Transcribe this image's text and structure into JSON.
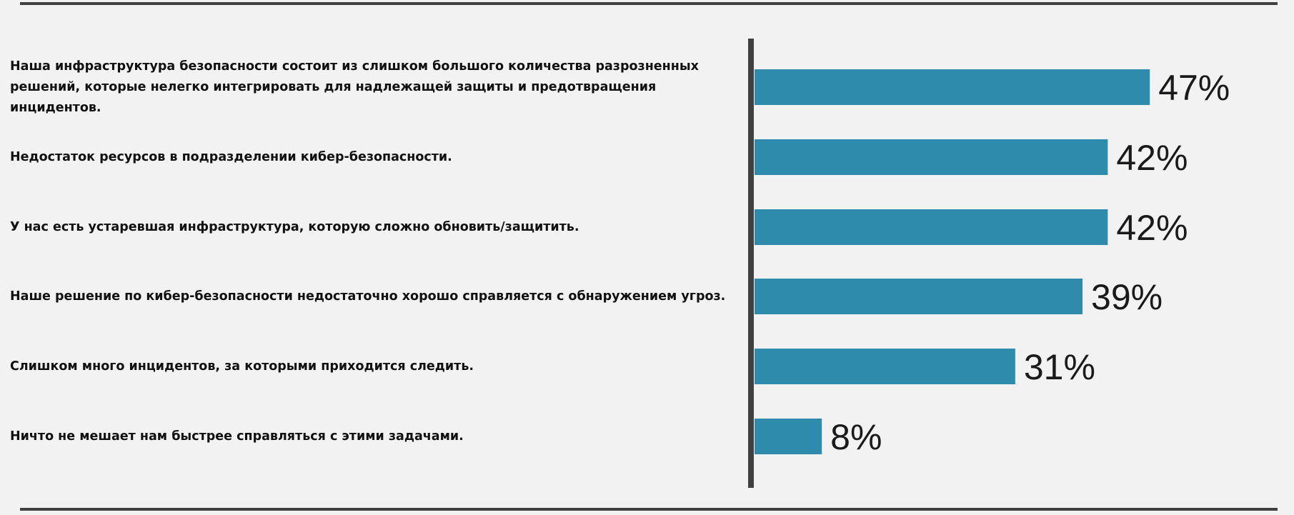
{
  "chart_data": {
    "type": "bar",
    "orientation": "horizontal",
    "categories": [
      "Наша инфраструктура безопасности состоит из слишком большого количества разрозненных решений, которые нелегко интегрировать для надлежащей защиты и предотвращения инцидентов.",
      "Недостаток ресурсов в подразделении кибер-безопасности.",
      "У нас есть устаревшая инфраструктура, которую сложно обновить/защитить.",
      "Наше решение по кибер-безопасности недостаточно хорошо справляется с обнаружением угроз.",
      "Слишком много инцидентов, за которыми приходится следить.",
      "Ничто не мешает нам быстрее справляться с этими задачами."
    ],
    "values": [
      47,
      42,
      42,
      39,
      31,
      8
    ],
    "value_labels": [
      "47%",
      "42%",
      "42%",
      "39%",
      "31%",
      "8%"
    ],
    "xlim": [
      0,
      100
    ],
    "grid": false,
    "legend": false,
    "colors": {
      "bar": "#2e8bac",
      "axis": "#404040",
      "background": "#f2f2f2",
      "text": "#111111"
    }
  }
}
